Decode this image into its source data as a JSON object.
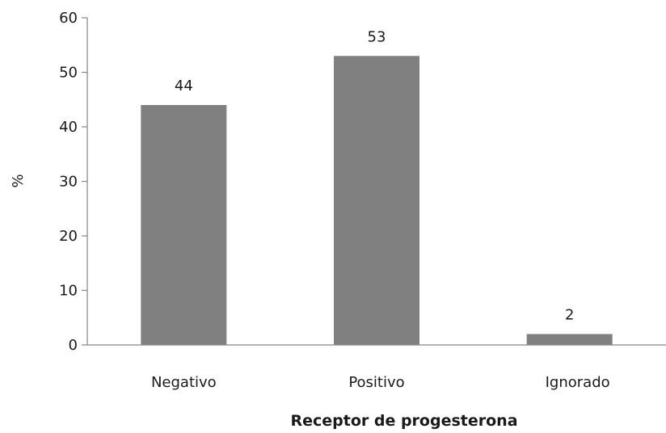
{
  "chart_data": {
    "type": "bar",
    "categories": [
      "Negativo",
      "Positivo",
      "Ignorado"
    ],
    "values": [
      44,
      53,
      2
    ],
    "data_labels": [
      "44",
      "53",
      "2"
    ],
    "title": "",
    "xlabel": "Receptor de progesterona",
    "ylabel": "%",
    "ylim": [
      0,
      60
    ],
    "yticks": [
      "0",
      "10",
      "20",
      "30",
      "40",
      "50",
      "60"
    ],
    "grid": false,
    "legend": "none",
    "bar_color": "#808080",
    "axis_color": "#868686"
  }
}
